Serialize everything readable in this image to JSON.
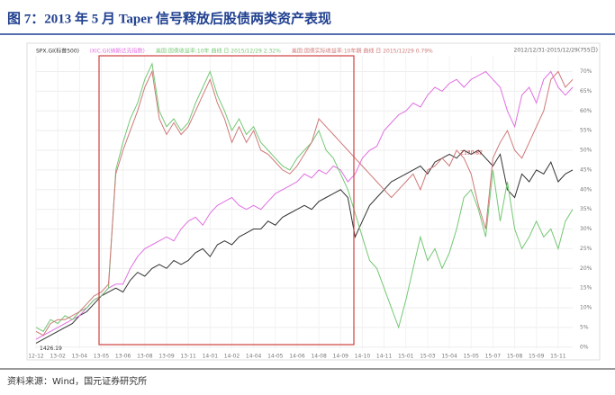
{
  "header": {
    "title": "图 7：2013 年 5 月 Taper 信号释放后股债两类资产表现"
  },
  "chart_data": {
    "type": "line",
    "range_label": "2012/12/31-2015/12/29(755日)",
    "annotations": [
      {
        "text": "1426.19",
        "series": 0,
        "index": 0
      },
      {
        "text": "2130.82",
        "series": 0,
        "index": 58
      }
    ],
    "categories": [
      "12-12",
      null,
      null,
      "13-02",
      null,
      null,
      "13-04",
      null,
      null,
      "13-05",
      null,
      null,
      "13-06",
      null,
      null,
      "13-08",
      null,
      null,
      "13-09",
      null,
      null,
      "13-11",
      null,
      null,
      "14-01",
      null,
      null,
      "14-02",
      null,
      null,
      "14-04",
      null,
      null,
      "14-05",
      null,
      null,
      "14-06",
      null,
      null,
      "14-08",
      null,
      null,
      "14-09",
      null,
      null,
      "14-10",
      null,
      null,
      "14-11",
      null,
      null,
      "15-01",
      null,
      null,
      "15-03",
      null,
      null,
      "15-04",
      null,
      null,
      "15-05",
      null,
      null,
      "15-07",
      null,
      null,
      "15-08",
      null,
      null,
      "15-09",
      null,
      null,
      "15-11",
      null,
      null
    ],
    "series": [
      {
        "name": "SPX.GI(标普500)",
        "color": "#333333",
        "values": [
          1,
          2,
          3,
          4,
          5,
          6,
          8,
          9,
          11,
          13,
          14,
          15,
          14,
          17,
          19,
          18,
          20,
          21,
          20,
          22,
          21,
          22,
          24,
          25,
          23,
          26,
          27,
          26,
          28,
          29,
          30,
          30,
          32,
          31,
          33,
          34,
          35,
          36,
          35,
          37,
          38,
          39,
          40,
          38,
          28,
          32,
          36,
          38,
          40,
          42,
          43,
          44,
          45,
          46,
          44,
          47,
          48,
          49,
          48,
          50,
          49,
          50,
          48,
          46,
          49,
          40,
          38,
          44,
          42,
          45,
          44,
          47,
          42,
          44,
          45
        ]
      },
      {
        "name": "IXIC.GI(纳斯达克指数)",
        "color": "#e070e0",
        "values": [
          2,
          3,
          4,
          5,
          6,
          7,
          8,
          10,
          12,
          13,
          15,
          16,
          16,
          20,
          23,
          25,
          26,
          27,
          28,
          27,
          30,
          32,
          33,
          31,
          34,
          36,
          37,
          38,
          36,
          35,
          36,
          35,
          37,
          39,
          40,
          41,
          42,
          44,
          43,
          45,
          44,
          46,
          45,
          42,
          44,
          48,
          50,
          51,
          55,
          57,
          59,
          60,
          62,
          61,
          64,
          66,
          65,
          67,
          68,
          66,
          68,
          69,
          70,
          68,
          66,
          60,
          56,
          64,
          66,
          62,
          68,
          70,
          66,
          64,
          66
        ]
      },
      {
        "name": "美国:国债收益率:10年 曲线 日 2015/12/29 2.32%",
        "color": "#74c874",
        "values": [
          5,
          4,
          7,
          6,
          8,
          7,
          9,
          10,
          12,
          13,
          15,
          45,
          52,
          58,
          62,
          68,
          72,
          60,
          56,
          58,
          55,
          57,
          62,
          66,
          70,
          64,
          60,
          55,
          58,
          54,
          56,
          52,
          50,
          48,
          46,
          45,
          48,
          50,
          52,
          55,
          50,
          48,
          44,
          40,
          34,
          28,
          22,
          20,
          15,
          10,
          5,
          12,
          20,
          28,
          22,
          25,
          20,
          24,
          30,
          38,
          40,
          35,
          28,
          45,
          32,
          42,
          30,
          25,
          28,
          32,
          28,
          30,
          25,
          32,
          35
        ]
      },
      {
        "name": "美国:国债实际收益率:10年期 曲线 日 2015/12/29 0.79%",
        "color": "#d07878",
        "values": [
          4,
          3,
          6,
          7,
          7,
          8,
          9,
          11,
          13,
          14,
          16,
          44,
          50,
          55,
          60,
          66,
          70,
          58,
          54,
          57,
          54,
          56,
          60,
          64,
          68,
          62,
          58,
          52,
          56,
          52,
          55,
          50,
          49,
          47,
          45,
          44,
          46,
          49,
          52,
          58,
          56,
          54,
          52,
          50,
          48,
          46,
          44,
          42,
          40,
          38,
          40,
          42,
          44,
          40,
          45,
          46,
          48,
          46,
          50,
          48,
          44,
          36,
          30,
          48,
          52,
          55,
          50,
          48,
          52,
          56,
          60,
          68,
          70,
          66,
          68
        ]
      }
    ],
    "ylim": [
      -0.5,
      74
    ],
    "yticks": [
      {
        "value": 0,
        "label": "0%"
      },
      {
        "value": 5,
        "label": "5%"
      },
      {
        "value": 10,
        "label": "10%"
      },
      {
        "value": 15,
        "label": "15%"
      },
      {
        "value": 20,
        "label": "20%"
      },
      {
        "value": 25,
        "label": "25%"
      },
      {
        "value": 30,
        "label": "30%"
      },
      {
        "value": 35,
        "label": "35%"
      },
      {
        "value": 40,
        "label": "40%"
      },
      {
        "value": 45,
        "label": "45%"
      },
      {
        "value": 50,
        "label": "50%"
      },
      {
        "value": 55,
        "label": "55%"
      },
      {
        "value": 60,
        "label": "60%"
      },
      {
        "value": 65,
        "label": "65%"
      },
      {
        "value": 70,
        "label": "70%"
      }
    ],
    "grid": true
  },
  "footer": {
    "source": "资料来源：Wind，国元证券研究所"
  }
}
